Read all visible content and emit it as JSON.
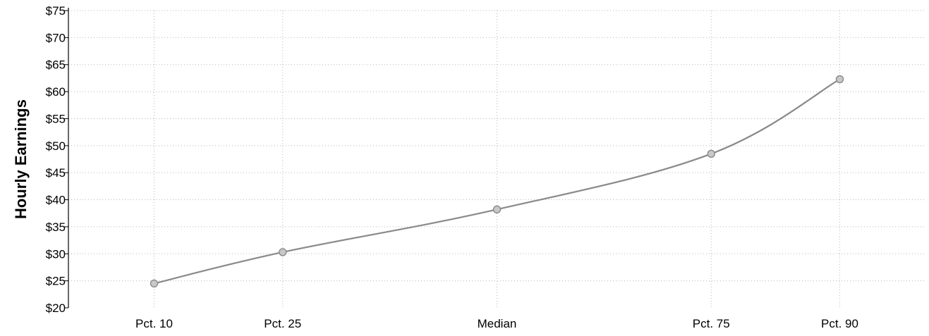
{
  "chart_data": {
    "type": "line",
    "title": "",
    "xlabel": "",
    "ylabel": "Hourly Earnings",
    "categories": [
      "Pct. 10",
      "Pct. 25",
      "Median",
      "Pct. 75",
      "Pct. 90"
    ],
    "x": [
      10,
      25,
      50,
      75,
      90
    ],
    "xlim": [
      0,
      100
    ],
    "series": [
      {
        "values": [
          24.5,
          30.3,
          38.2,
          48.5,
          62.3
        ]
      }
    ],
    "ylim": [
      20,
      75
    ],
    "yticks": [
      20,
      25,
      30,
      35,
      40,
      45,
      50,
      55,
      60,
      65,
      70,
      75
    ],
    "ytick_labels": [
      "$20",
      "$25",
      "$30",
      "$35",
      "$40",
      "$45",
      "$50",
      "$55",
      "$60",
      "$65",
      "$70",
      "$75"
    ],
    "grid": true,
    "legend": "none",
    "line_color": "#8a8a8a"
  }
}
